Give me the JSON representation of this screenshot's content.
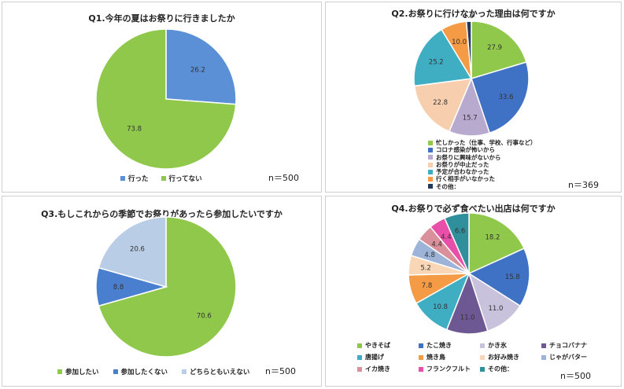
{
  "chart_data": [
    {
      "type": "pie",
      "title": "Q1.今年の夏はお祭りに行きましたか",
      "categories": [
        "行った",
        "行ってない"
      ],
      "values": [
        26.2,
        73.8
      ],
      "colors": [
        "#5b8fd6",
        "#8fc84a"
      ],
      "data_labels": [
        "26.2",
        "73.8"
      ],
      "n_label": "n＝500",
      "legend_position": "bottom"
    },
    {
      "type": "pie",
      "title": "Q2.お祭りに行けなかった理由は何ですか",
      "categories": [
        "忙しかった（仕事、学校、行事など）",
        "コロナ感染が怖いから",
        "お祭りに興味がないから",
        "お祭りが中止だった",
        "予定が合わなかった",
        "行く相手がいなかった",
        "その他："
      ],
      "values": [
        27.9,
        33.6,
        15.7,
        22.8,
        25.2,
        10.0,
        1.9
      ],
      "colors": [
        "#8fc84a",
        "#3f72c4",
        "#b8a9cf",
        "#f8cfae",
        "#3faec3",
        "#f59a45",
        "#23395d"
      ],
      "data_labels": [
        "27.9",
        "33.6",
        "15.7",
        "22.8",
        "25.2",
        "10.0",
        "1.9"
      ],
      "n_label": "n＝369",
      "legend_position": "bottom-left"
    },
    {
      "type": "pie",
      "title": "Q3.もしこれからの季節でお祭りがあったら参加したいですか",
      "categories": [
        "参加したい",
        "参加したくない",
        "どちらともいえない"
      ],
      "values": [
        70.6,
        8.8,
        20.6
      ],
      "colors": [
        "#8fc84a",
        "#4a7fcf",
        "#b9cde6"
      ],
      "data_labels": [
        "70.6",
        "8.8",
        "20.6"
      ],
      "n_label": "n＝500",
      "legend_position": "bottom"
    },
    {
      "type": "pie",
      "title": "Q4.お祭りで必ず食べたい出店は何ですか",
      "categories": [
        "やきそば",
        "たこ焼き",
        "かき氷",
        "チョコバナナ",
        "唐揚げ",
        "焼き鳥",
        "お好み焼き",
        "じゃがバター",
        "イカ焼き",
        "フランクフルト",
        "その他："
      ],
      "values": [
        18.2,
        15.8,
        11.0,
        11.0,
        10.8,
        7.8,
        5.2,
        4.8,
        4.4,
        4.4,
        6.6
      ],
      "colors": [
        "#8fc84a",
        "#3f72c4",
        "#c8c2dc",
        "#6e5894",
        "#3faec3",
        "#f59a45",
        "#f8d6b6",
        "#9db4d8",
        "#d9909a",
        "#e84fa8",
        "#2f8f9a"
      ],
      "data_labels": [
        "18.2",
        "15.8",
        "11.0",
        "11.0",
        "10.8",
        "7.8",
        "5.2",
        "4.8",
        "4.4",
        "4.4",
        "6.6"
      ],
      "n_label": "n＝500",
      "legend_position": "bottom"
    }
  ]
}
